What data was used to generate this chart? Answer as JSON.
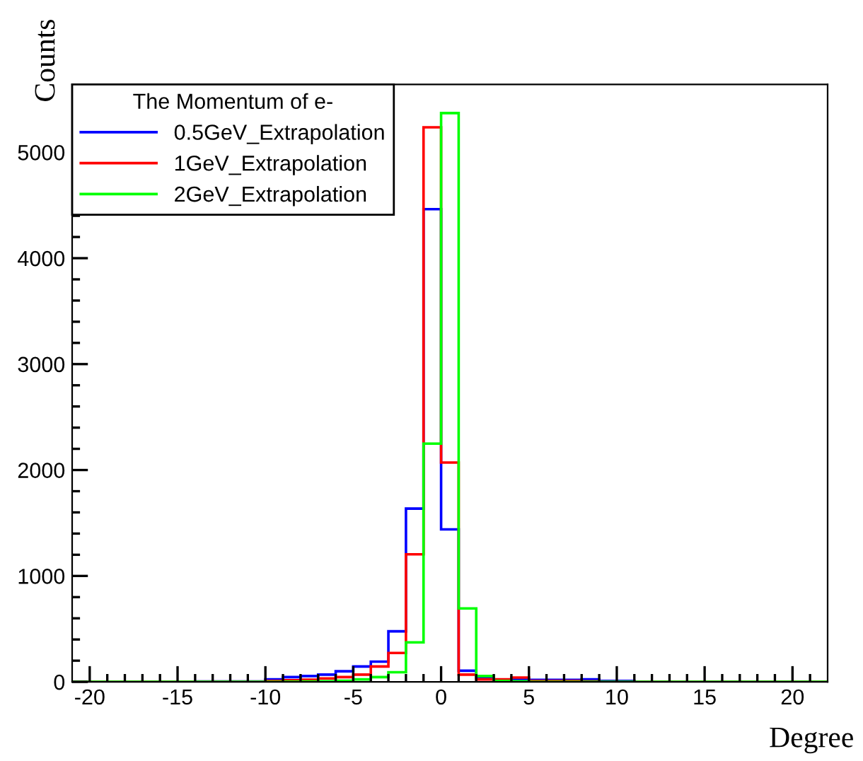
{
  "chart_data": {
    "type": "histogram",
    "xlabel": "Degree",
    "ylabel": "Counts",
    "legend_title": "The Momentum of e-",
    "bins": [
      -21,
      -20,
      -19,
      -18,
      -17,
      -16,
      -15,
      -14,
      -13,
      -12,
      -11,
      -10,
      -9,
      -8,
      -7,
      -6,
      -5,
      -4,
      -3,
      -2,
      -1,
      0,
      1,
      2,
      3,
      4,
      5,
      6,
      7,
      8,
      9,
      10,
      11,
      12,
      13,
      14,
      15,
      16,
      17,
      18,
      19,
      20,
      21,
      22
    ],
    "series": [
      {
        "name": "0.5GeV_Extrapolation",
        "color": "#0000ff",
        "values": [
          0,
          0,
          0,
          0,
          0,
          0,
          0,
          3,
          3,
          3,
          3,
          23,
          45,
          55,
          68,
          100,
          145,
          191,
          477,
          1636,
          4463,
          1440,
          105,
          36,
          14,
          23,
          18,
          18,
          18,
          23,
          9,
          9,
          0,
          0,
          0,
          0,
          0,
          0,
          0,
          0,
          0,
          0,
          0
        ]
      },
      {
        "name": "1GeV_Extrapolation",
        "color": "#ff0000",
        "values": [
          0,
          0,
          0,
          0,
          0,
          0,
          0,
          0,
          0,
          0,
          0,
          8,
          15,
          20,
          32,
          45,
          68,
          145,
          273,
          1204,
          5236,
          2071,
          68,
          23,
          23,
          41,
          9,
          9,
          9,
          5,
          0,
          0,
          0,
          0,
          0,
          0,
          0,
          0,
          0,
          0,
          0,
          0,
          0
        ]
      },
      {
        "name": "2GeV_Extrapolation",
        "color": "#00ff00",
        "values": [
          0,
          0,
          0,
          0,
          0,
          0,
          0,
          0,
          0,
          0,
          0,
          1,
          2,
          3,
          5,
          10,
          23,
          45,
          91,
          373,
          2249,
          5370,
          693,
          55,
          9,
          5,
          1,
          1,
          1,
          0,
          0,
          0,
          0,
          0,
          0,
          0,
          0,
          0,
          0,
          0,
          0,
          0,
          0
        ]
      }
    ],
    "xlim": [
      -21,
      22
    ],
    "ylim": [
      0,
      5640
    ],
    "xticks": [
      -20,
      {
        "value": -19,
        "label": null
      },
      {
        "value": -18,
        "label": null
      },
      {
        "value": -17,
        "label": null
      },
      {
        "value": -16,
        "label": null
      },
      -15,
      {
        "value": -14,
        "label": null
      },
      {
        "value": -13,
        "label": null
      },
      {
        "value": -12,
        "label": null
      },
      {
        "value": -11,
        "label": null
      },
      -10,
      {
        "value": -9,
        "label": null
      },
      {
        "value": -8,
        "label": null
      },
      {
        "value": -7,
        "label": null
      },
      {
        "value": -6,
        "label": null
      },
      -5,
      {
        "value": -4,
        "label": null
      },
      {
        "value": -3,
        "label": null
      },
      {
        "value": -2,
        "label": null
      },
      {
        "value": -1,
        "label": null
      },
      0,
      {
        "value": 1,
        "label": null
      },
      {
        "value": 2,
        "label": null
      },
      {
        "value": 3,
        "label": null
      },
      {
        "value": 4,
        "label": null
      },
      5,
      {
        "value": 6,
        "label": null
      },
      {
        "value": 7,
        "label": null
      },
      {
        "value": 8,
        "label": null
      },
      {
        "value": 9,
        "label": null
      },
      10,
      {
        "value": 11,
        "label": null
      },
      {
        "value": 12,
        "label": null
      },
      {
        "value": 13,
        "label": null
      },
      {
        "value": 14,
        "label": null
      },
      15,
      {
        "value": 16,
        "label": null
      },
      {
        "value": 17,
        "label": null
      },
      {
        "value": 18,
        "label": null
      },
      {
        "value": 19,
        "label": null
      },
      20,
      {
        "value": 21,
        "label": null
      }
    ],
    "yticks": [
      0,
      {
        "value": 200,
        "label": null
      },
      {
        "value": 400,
        "label": null
      },
      {
        "value": 600,
        "label": null
      },
      {
        "value": 800,
        "label": null
      },
      1000,
      {
        "value": 1200,
        "label": null
      },
      {
        "value": 1400,
        "label": null
      },
      {
        "value": 1600,
        "label": null
      },
      {
        "value": 1800,
        "label": null
      },
      2000,
      {
        "value": 2200,
        "label": null
      },
      {
        "value": 2400,
        "label": null
      },
      {
        "value": 2600,
        "label": null
      },
      {
        "value": 2800,
        "label": null
      },
      3000,
      {
        "value": 3200,
        "label": null
      },
      {
        "value": 3400,
        "label": null
      },
      {
        "value": 3600,
        "label": null
      },
      {
        "value": 3800,
        "label": null
      },
      4000,
      {
        "value": 4200,
        "label": null
      },
      {
        "value": 4400,
        "label": null
      },
      {
        "value": 4600,
        "label": null
      },
      {
        "value": 4800,
        "label": null
      },
      5000,
      {
        "value": 5200,
        "label": null
      },
      {
        "value": 5400,
        "label": null
      }
    ],
    "grid": false,
    "legend": "top left"
  }
}
